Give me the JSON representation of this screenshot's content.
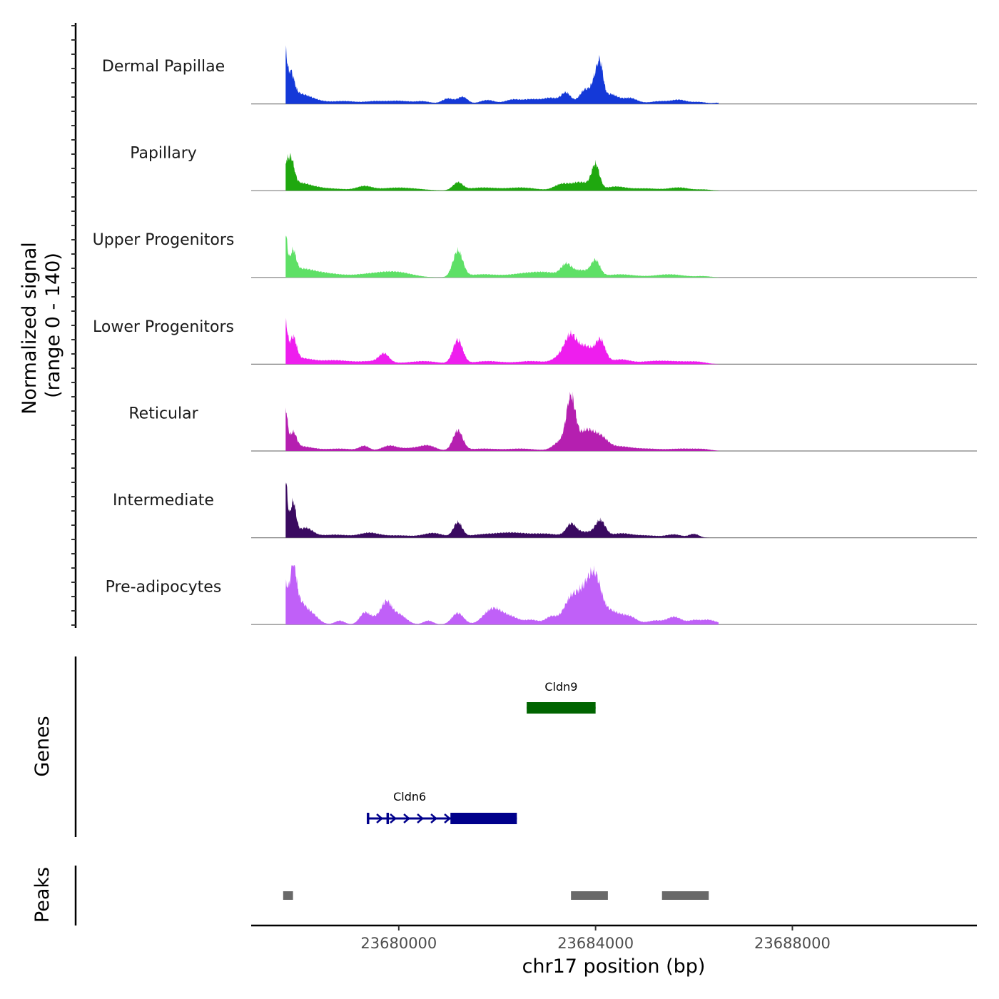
{
  "chart_data": {
    "type": "area",
    "title": "",
    "ylabel_line1": "Normalized signal",
    "ylabel_line2": "(range 0 - 140)",
    "yrange": [
      0,
      140
    ],
    "xlabel": "chr17 position (bp)",
    "xlim": [
      23677000,
      23691750
    ],
    "x_ticks": [
      23680000,
      23684000,
      23688000
    ],
    "x_tick_labels": [
      "23680000",
      "23684000",
      "23688000"
    ],
    "tracks": [
      {
        "name": "Dermal Papillae",
        "color": "#1439d8",
        "peaks": [
          [
            23677700,
            0.95,
            30
          ],
          [
            23677800,
            0.6,
            70
          ],
          [
            23677900,
            0.2,
            300
          ],
          [
            23678000,
            0.08,
            350
          ],
          [
            23678900,
            0.07,
            250
          ],
          [
            23679500,
            0.06,
            200
          ],
          [
            23680000,
            0.08,
            250
          ],
          [
            23680500,
            0.06,
            150
          ],
          [
            23681000,
            0.14,
            120
          ],
          [
            23681300,
            0.18,
            100
          ],
          [
            23681800,
            0.1,
            150
          ],
          [
            23682300,
            0.1,
            150
          ],
          [
            23682700,
            0.12,
            200
          ],
          [
            23683100,
            0.14,
            150
          ],
          [
            23683400,
            0.28,
            100
          ],
          [
            23683800,
            0.38,
            120
          ],
          [
            23684000,
            0.55,
            70
          ],
          [
            23684100,
            0.8,
            60
          ],
          [
            23684300,
            0.25,
            150
          ],
          [
            23684700,
            0.15,
            150
          ],
          [
            23685300,
            0.07,
            200
          ],
          [
            23685700,
            0.1,
            150
          ],
          [
            23686100,
            0.05,
            150
          ],
          [
            23686500,
            0.03,
            100
          ]
        ]
      },
      {
        "name": "Papillary",
        "color": "#1fa80f",
        "peaks": [
          [
            23677700,
            0.35,
            40
          ],
          [
            23677800,
            0.72,
            70
          ],
          [
            23677950,
            0.18,
            250
          ],
          [
            23678500,
            0.06,
            400
          ],
          [
            23679300,
            0.1,
            150
          ],
          [
            23680000,
            0.08,
            400
          ],
          [
            23681200,
            0.2,
            100
          ],
          [
            23681700,
            0.08,
            300
          ],
          [
            23682500,
            0.08,
            300
          ],
          [
            23683300,
            0.15,
            150
          ],
          [
            23683700,
            0.22,
            200
          ],
          [
            23684000,
            0.62,
            80
          ],
          [
            23684400,
            0.1,
            200
          ],
          [
            23685000,
            0.06,
            300
          ],
          [
            23685700,
            0.08,
            200
          ],
          [
            23686200,
            0.03,
            150
          ]
        ]
      },
      {
        "name": "Upper Progenitors",
        "color": "#5ee066",
        "peaks": [
          [
            23677700,
            0.95,
            40
          ],
          [
            23677850,
            0.55,
            60
          ],
          [
            23678000,
            0.2,
            250
          ],
          [
            23678500,
            0.1,
            300
          ],
          [
            23679500,
            0.1,
            400
          ],
          [
            23680000,
            0.1,
            300
          ],
          [
            23681200,
            0.68,
            100
          ],
          [
            23681700,
            0.08,
            300
          ],
          [
            23682500,
            0.08,
            300
          ],
          [
            23683000,
            0.12,
            300
          ],
          [
            23683400,
            0.26,
            100
          ],
          [
            23683700,
            0.18,
            200
          ],
          [
            23684000,
            0.38,
            90
          ],
          [
            23684500,
            0.08,
            300
          ],
          [
            23685500,
            0.08,
            300
          ],
          [
            23686200,
            0.03,
            150
          ]
        ]
      },
      {
        "name": "Lower Progenitors",
        "color": "#ee1eee",
        "peaks": [
          [
            23677700,
            0.95,
            40
          ],
          [
            23677850,
            0.6,
            70
          ],
          [
            23678000,
            0.15,
            250
          ],
          [
            23678700,
            0.1,
            300
          ],
          [
            23679500,
            0.08,
            300
          ],
          [
            23679700,
            0.22,
            100
          ],
          [
            23680500,
            0.08,
            300
          ],
          [
            23681200,
            0.62,
            100
          ],
          [
            23681800,
            0.08,
            300
          ],
          [
            23682700,
            0.08,
            300
          ],
          [
            23683300,
            0.2,
            150
          ],
          [
            23683500,
            0.65,
            120
          ],
          [
            23683800,
            0.45,
            150
          ],
          [
            23684100,
            0.58,
            100
          ],
          [
            23684500,
            0.12,
            200
          ],
          [
            23685200,
            0.08,
            300
          ],
          [
            23685800,
            0.06,
            300
          ],
          [
            23686100,
            0.03,
            150
          ]
        ]
      },
      {
        "name": "Reticular",
        "color": "#b51fb0",
        "peaks": [
          [
            23677700,
            1.0,
            40
          ],
          [
            23677850,
            0.4,
            70
          ],
          [
            23678000,
            0.12,
            250
          ],
          [
            23678800,
            0.06,
            300
          ],
          [
            23679300,
            0.12,
            100
          ],
          [
            23679800,
            0.12,
            150
          ],
          [
            23680300,
            0.08,
            300
          ],
          [
            23680600,
            0.1,
            150
          ],
          [
            23681200,
            0.52,
            100
          ],
          [
            23681700,
            0.06,
            300
          ],
          [
            23682500,
            0.06,
            300
          ],
          [
            23683300,
            0.25,
            150
          ],
          [
            23683500,
            1.3,
            90
          ],
          [
            23683800,
            0.5,
            150
          ],
          [
            23684100,
            0.35,
            150
          ],
          [
            23684500,
            0.1,
            200
          ],
          [
            23685000,
            0.06,
            300
          ],
          [
            23685800,
            0.06,
            300
          ],
          [
            23686200,
            0.03,
            150
          ]
        ]
      },
      {
        "name": "Intermediate",
        "color": "#3a0a60",
        "peaks": [
          [
            23677700,
            1.4,
            40
          ],
          [
            23677850,
            0.88,
            60
          ],
          [
            23678100,
            0.25,
            150
          ],
          [
            23678700,
            0.08,
            300
          ],
          [
            23679400,
            0.12,
            200
          ],
          [
            23680000,
            0.06,
            300
          ],
          [
            23680700,
            0.12,
            200
          ],
          [
            23681200,
            0.38,
            90
          ],
          [
            23681700,
            0.08,
            300
          ],
          [
            23682300,
            0.12,
            300
          ],
          [
            23683000,
            0.1,
            300
          ],
          [
            23683500,
            0.3,
            100
          ],
          [
            23683800,
            0.15,
            200
          ],
          [
            23684100,
            0.4,
            100
          ],
          [
            23684500,
            0.1,
            200
          ],
          [
            23685000,
            0.06,
            300
          ],
          [
            23685600,
            0.08,
            150
          ],
          [
            23686000,
            0.1,
            100
          ]
        ]
      },
      {
        "name": "Pre-adipocytes",
        "color": "#c060f8",
        "peaks": [
          [
            23677700,
            0.9,
            50
          ],
          [
            23677850,
            1.25,
            60
          ],
          [
            23677950,
            0.55,
            120
          ],
          [
            23678200,
            0.3,
            150
          ],
          [
            23678800,
            0.1,
            100
          ],
          [
            23679300,
            0.25,
            100
          ],
          [
            23679600,
            0.2,
            200
          ],
          [
            23679750,
            0.4,
            100
          ],
          [
            23680000,
            0.25,
            150
          ],
          [
            23680600,
            0.1,
            100
          ],
          [
            23681200,
            0.3,
            120
          ],
          [
            23681800,
            0.22,
            150
          ],
          [
            23682000,
            0.3,
            150
          ],
          [
            23682300,
            0.18,
            150
          ],
          [
            23682700,
            0.12,
            150
          ],
          [
            23683100,
            0.2,
            120
          ],
          [
            23683500,
            0.65,
            150
          ],
          [
            23683800,
            0.8,
            150
          ],
          [
            23684000,
            0.9,
            120
          ],
          [
            23684300,
            0.35,
            200
          ],
          [
            23684700,
            0.18,
            150
          ],
          [
            23685200,
            0.1,
            150
          ],
          [
            23685600,
            0.2,
            150
          ],
          [
            23686000,
            0.1,
            120
          ],
          [
            23686300,
            0.12,
            150
          ],
          [
            23686700,
            0.08,
            100
          ]
        ]
      }
    ],
    "genes": {
      "axis_title": "Genes",
      "items": [
        {
          "name": "Cldn9",
          "start": 23682600,
          "end": 23684000,
          "strand": "+",
          "color": "#006400",
          "exons": [
            [
              23682600,
              23684000
            ]
          ]
        },
        {
          "name": "Cldn6",
          "start": 23679350,
          "end": 23682400,
          "strand": "+",
          "color": "#00008b",
          "exons": [
            [
              23679350,
              23679400
            ],
            [
              23679750,
              23679800
            ],
            [
              23681050,
              23682400
            ]
          ]
        }
      ]
    },
    "peaks_track": {
      "axis_title": "Peaks",
      "color": "#696969",
      "regions": [
        [
          23677650,
          23677850
        ],
        [
          23683500,
          23684250
        ],
        [
          23685350,
          23686300
        ]
      ]
    }
  }
}
